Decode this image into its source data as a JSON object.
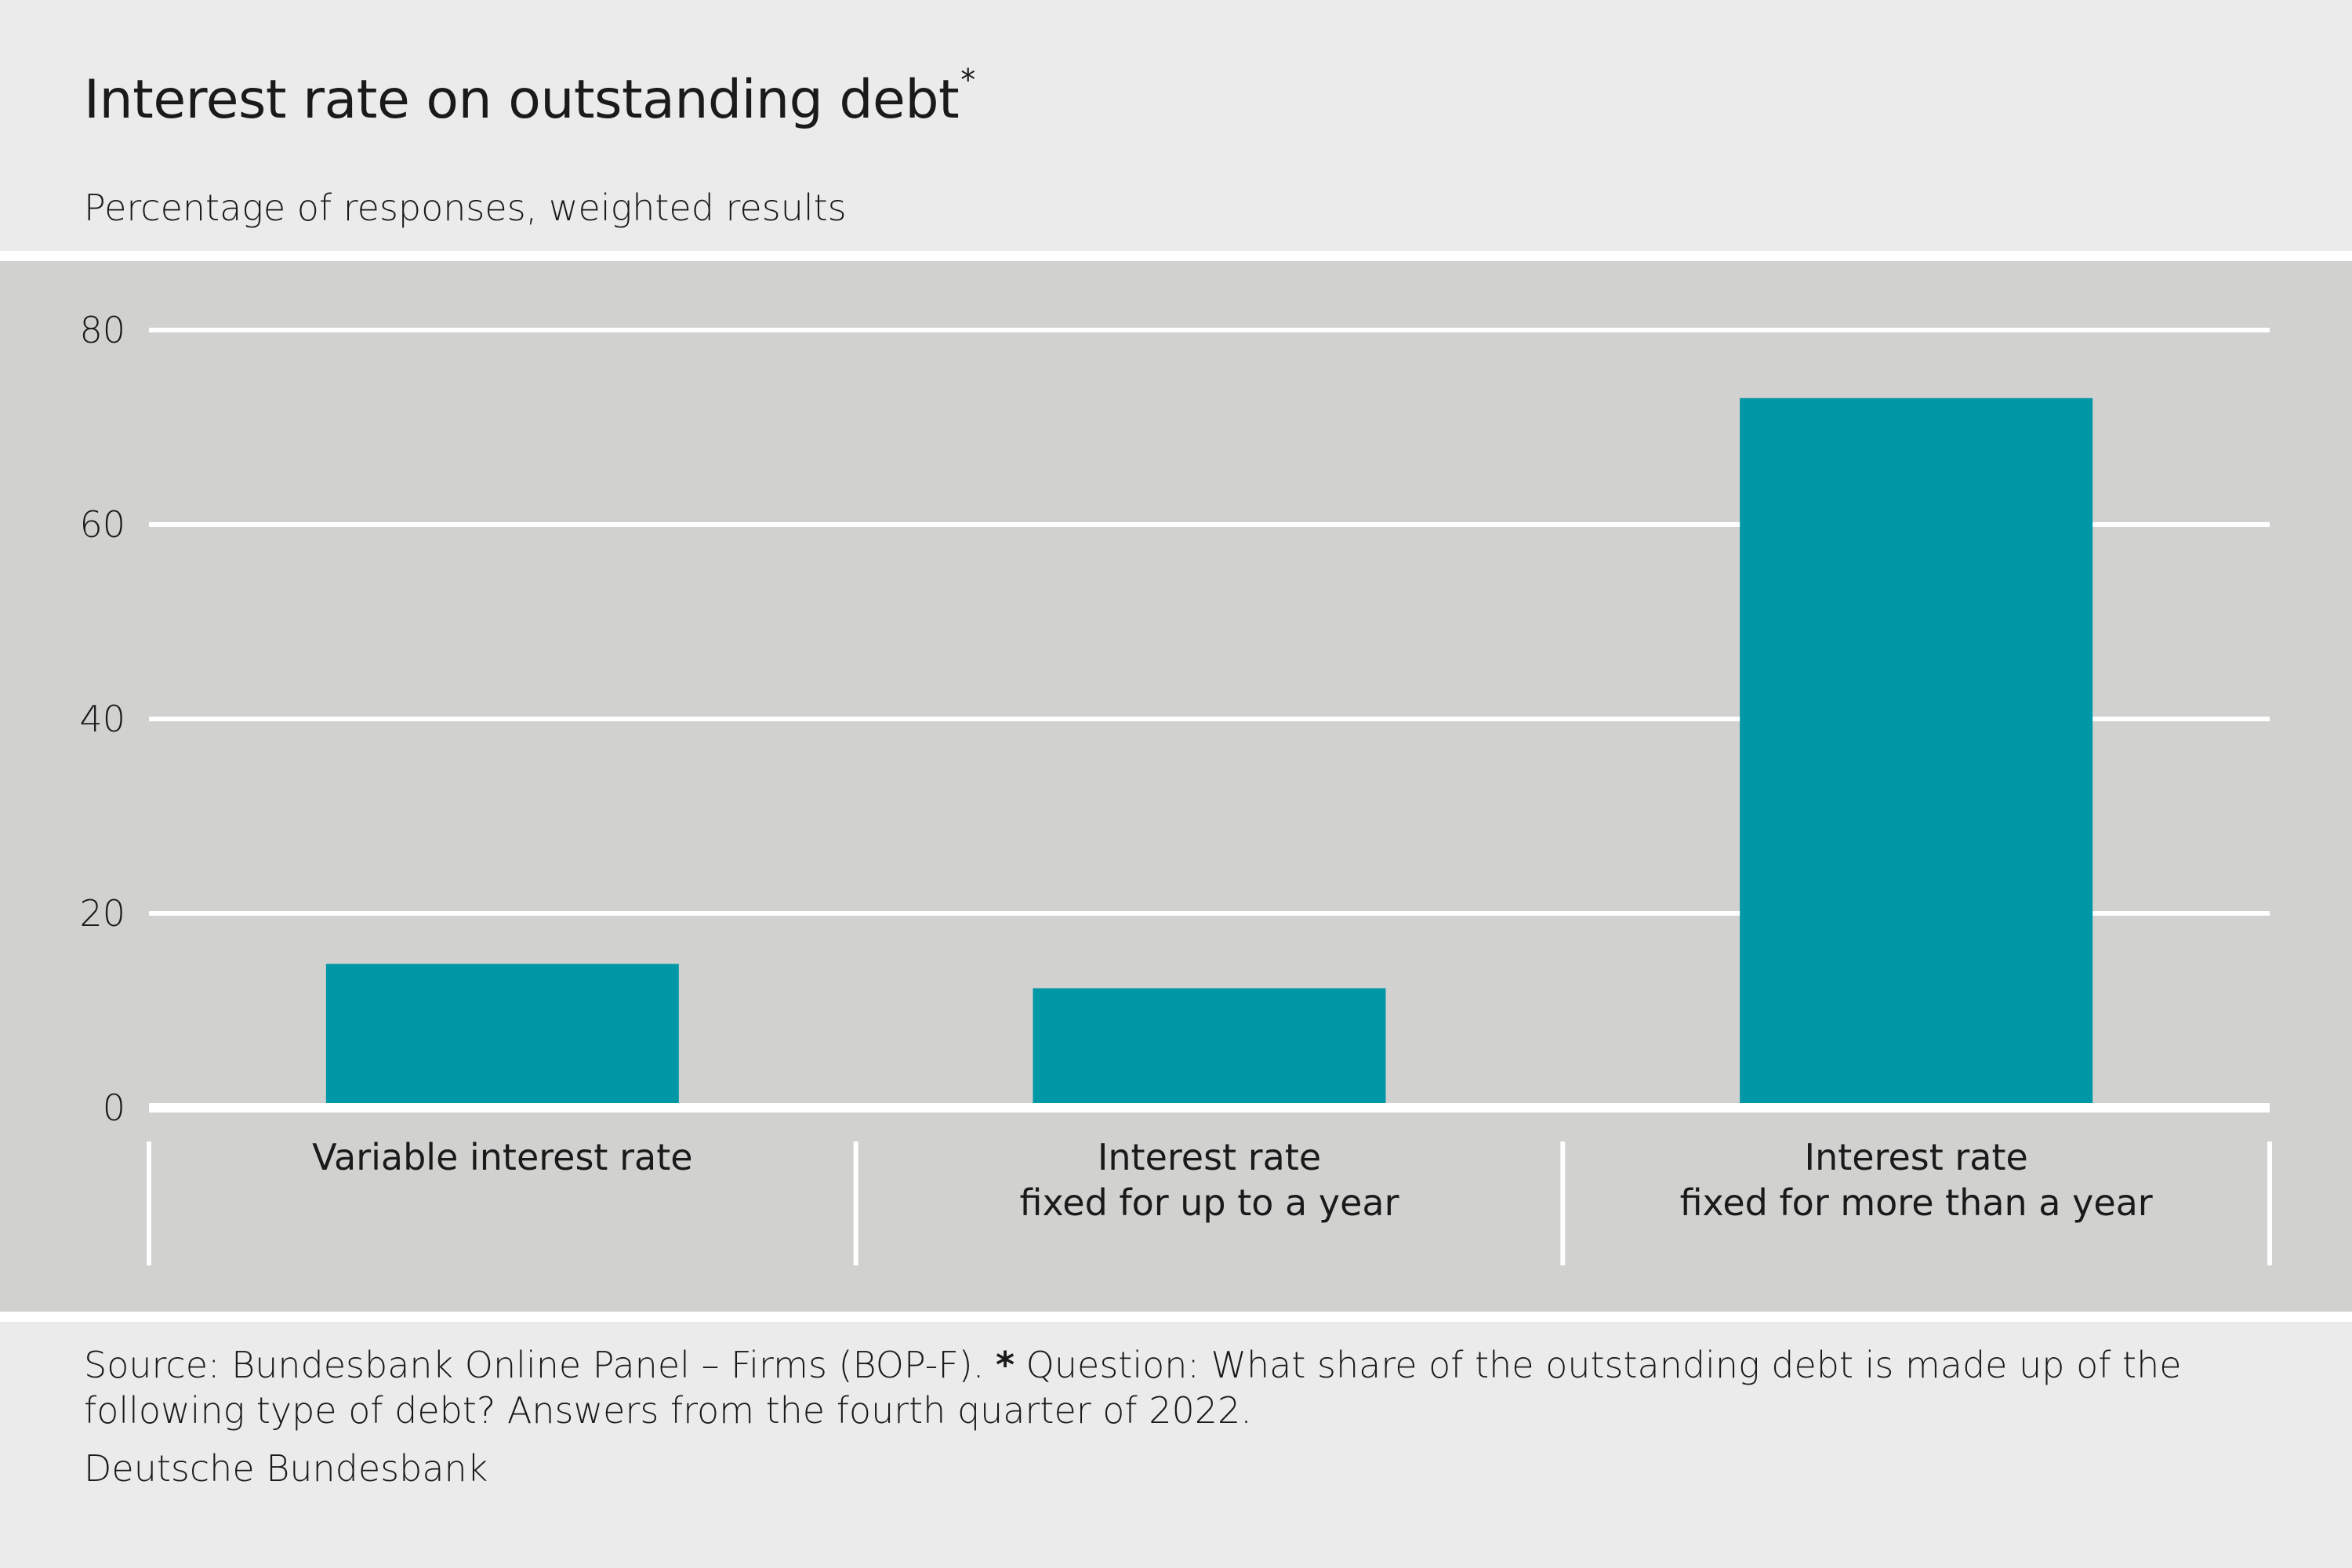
{
  "header": {
    "title": "Interest rate on outstanding debt",
    "title_marker": "*",
    "subtitle": "Percentage of responses, weighted results"
  },
  "footer": {
    "source_prefix": "Source: Bundesbank Online Panel – Firms (BOP-F). ",
    "source_star": "*",
    "source_rest": " Question: What share of the outstanding debt is made up of the following type of debt? Answers from the fourth quarter of 2022.",
    "brand": "Deutsche Bundesbank"
  },
  "colors": {
    "bar": "#0097a7",
    "plot_background": "#d1d1cf",
    "page_background": "#ebebeb",
    "gridline": "#ffffff"
  },
  "chart_data": {
    "type": "bar",
    "title": "Interest rate on outstanding debt",
    "subtitle": "Percentage of responses, weighted results",
    "categories": [
      [
        "Variable interest rate"
      ],
      [
        "Interest rate",
        "fixed for up to a year"
      ],
      [
        "Interest rate",
        "fixed for more than a year"
      ]
    ],
    "values": [
      14.8,
      12.3,
      73
    ],
    "ylim": [
      0,
      80
    ],
    "yticks": [
      0,
      20,
      40,
      60,
      80
    ],
    "grid": true
  }
}
